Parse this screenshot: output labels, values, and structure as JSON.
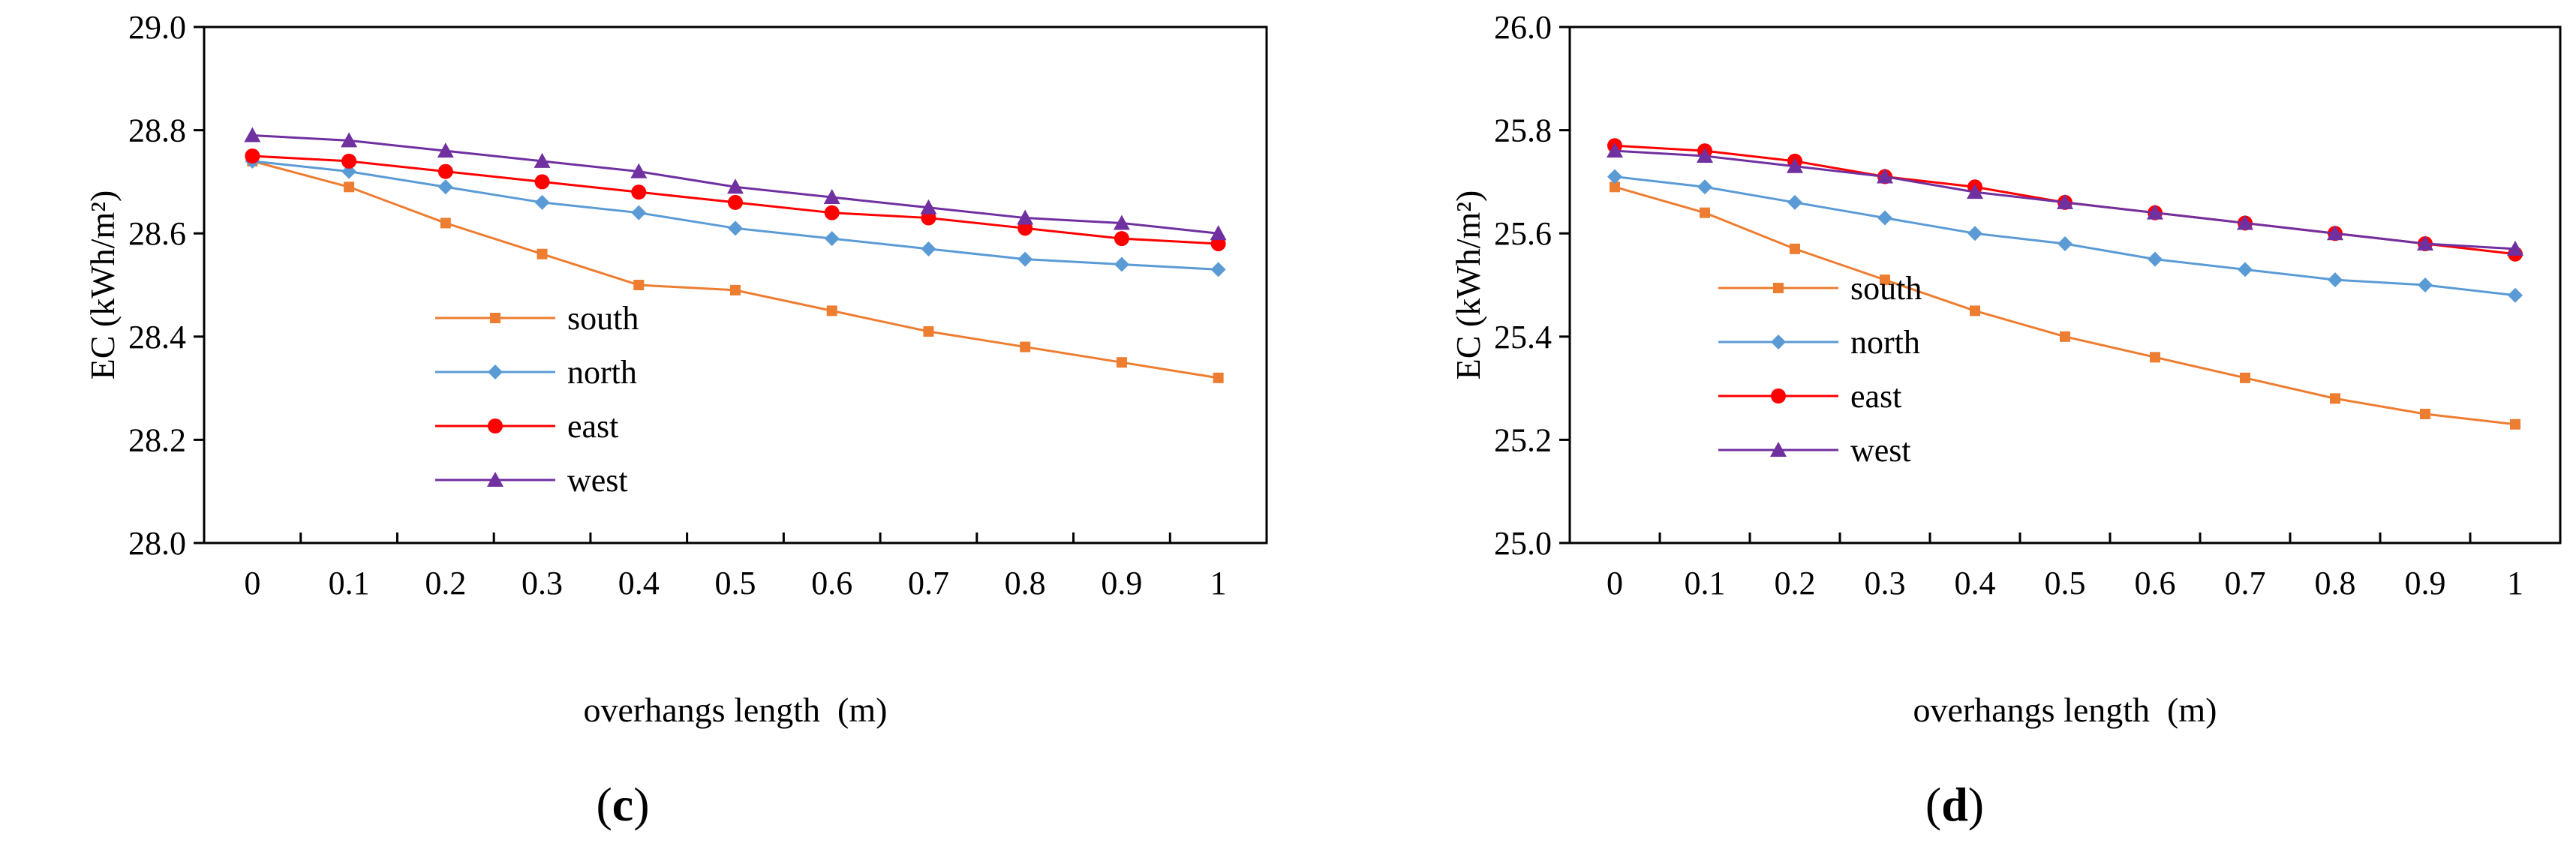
{
  "chart_data": [
    {
      "type": "line",
      "panel": "c",
      "caption": {
        "open": "(",
        "letter": "c",
        "close": ")"
      },
      "title": "",
      "xlabel": "overhangs length (m)",
      "ylabel": "EC (kWh/m²)",
      "ylim": [
        28.0,
        29.0
      ],
      "yticks": [
        "28.0",
        "28.2",
        "28.4",
        "28.6",
        "28.8",
        "29.0"
      ],
      "categories": [
        "0",
        "0.1",
        "0.2",
        "0.3",
        "0.4",
        "0.5",
        "0.6",
        "0.7",
        "0.8",
        "0.9",
        "1"
      ],
      "legend_position": "center-left",
      "series": [
        {
          "name": "south",
          "color": "#ED7D31",
          "marker": "square",
          "values": [
            28.74,
            28.69,
            28.62,
            28.56,
            28.5,
            28.49,
            28.45,
            28.41,
            28.38,
            28.35,
            28.32
          ]
        },
        {
          "name": "north",
          "color": "#5B9BD5",
          "marker": "diamond",
          "values": [
            28.74,
            28.72,
            28.69,
            28.66,
            28.64,
            28.61,
            28.59,
            28.57,
            28.55,
            28.54,
            28.53
          ]
        },
        {
          "name": "east",
          "color": "#FF0000",
          "marker": "circle",
          "values": [
            28.75,
            28.74,
            28.72,
            28.7,
            28.68,
            28.66,
            28.64,
            28.63,
            28.61,
            28.59,
            28.58
          ]
        },
        {
          "name": "west",
          "color": "#7030A0",
          "marker": "triangle",
          "values": [
            28.79,
            28.78,
            28.76,
            28.74,
            28.72,
            28.69,
            28.67,
            28.65,
            28.63,
            28.62,
            28.6
          ]
        }
      ]
    },
    {
      "type": "line",
      "panel": "d",
      "caption": {
        "open": "(",
        "letter": "d",
        "close": ")"
      },
      "title": "",
      "xlabel": "overhangs length (m)",
      "ylabel": "EC (kWh/m²)",
      "ylim": [
        25.0,
        26.0
      ],
      "yticks": [
        "25.0",
        "25.2",
        "25.4",
        "25.6",
        "25.8",
        "26.0"
      ],
      "categories": [
        "0",
        "0.1",
        "0.2",
        "0.3",
        "0.4",
        "0.5",
        "0.6",
        "0.7",
        "0.8",
        "0.9",
        "1"
      ],
      "legend_position": "center-left",
      "series": [
        {
          "name": "south",
          "color": "#ED7D31",
          "marker": "square",
          "values": [
            25.69,
            25.64,
            25.57,
            25.51,
            25.45,
            25.4,
            25.36,
            25.32,
            25.28,
            25.25,
            25.23
          ]
        },
        {
          "name": "north",
          "color": "#5B9BD5",
          "marker": "diamond",
          "values": [
            25.71,
            25.69,
            25.66,
            25.63,
            25.6,
            25.58,
            25.55,
            25.53,
            25.51,
            25.5,
            25.48
          ]
        },
        {
          "name": "east",
          "color": "#FF0000",
          "marker": "circle",
          "values": [
            25.77,
            25.76,
            25.74,
            25.71,
            25.69,
            25.66,
            25.64,
            25.62,
            25.6,
            25.58,
            25.56
          ]
        },
        {
          "name": "west",
          "color": "#7030A0",
          "marker": "triangle",
          "values": [
            25.76,
            25.75,
            25.73,
            25.71,
            25.68,
            25.66,
            25.64,
            25.62,
            25.6,
            25.58,
            25.57
          ]
        }
      ]
    }
  ]
}
